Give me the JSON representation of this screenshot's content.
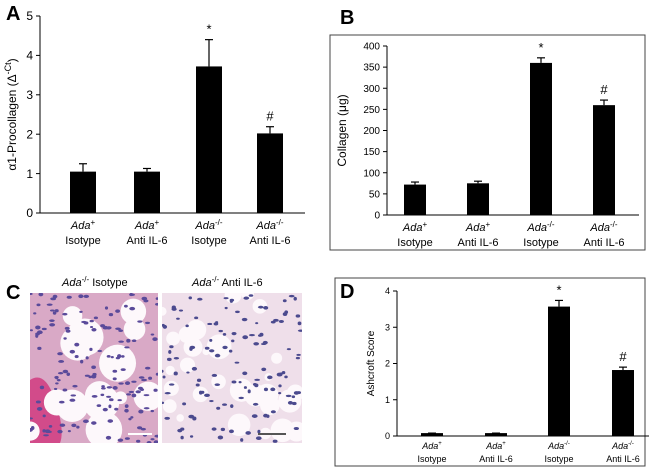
{
  "chart_data": [
    {
      "type": "bar",
      "panel": "A",
      "ylabel": "α1-Procollagen (Δ",
      "ylabel_sup": "-Ct",
      "ylabel_end": ")",
      "gene": "Ada",
      "genotypes": [
        "+",
        "+",
        "-/-",
        "-/-"
      ],
      "categories": [
        "Isotype",
        "Anti IL-6",
        "Isotype",
        "Anti IL-6"
      ],
      "values": [
        1.05,
        1.05,
        3.72,
        2.02
      ],
      "errors": [
        0.2,
        0.08,
        0.68,
        0.17
      ],
      "annotations": [
        null,
        null,
        "*",
        "#"
      ],
      "color": "#000000",
      "ylim": [
        0,
        5
      ],
      "yticks": [
        0,
        1,
        2,
        3,
        4,
        5
      ]
    },
    {
      "type": "bar",
      "panel": "B",
      "ylabel": "Collagen (μg)",
      "gene": "Ada",
      "genotypes": [
        "+",
        "+",
        "-/-",
        "-/-"
      ],
      "categories": [
        "Isotype",
        "Anti IL-6",
        "Isotype",
        "Anti IL-6"
      ],
      "values": [
        72,
        75,
        360,
        260
      ],
      "errors": [
        6,
        5,
        12,
        12
      ],
      "annotations": [
        null,
        null,
        "*",
        "#"
      ],
      "color": "#000000",
      "ylim": [
        0,
        400
      ],
      "yticks": [
        0,
        50,
        100,
        150,
        200,
        250,
        300,
        350,
        400
      ]
    },
    {
      "type": "bar",
      "panel": "D",
      "ylabel": "Ashcroft Score",
      "gene": "Ada",
      "genotypes": [
        "+",
        "+",
        "-/-",
        "-/-"
      ],
      "categories": [
        "Isotype",
        "Anti IL-6",
        "Isotype",
        "Anti IL-6"
      ],
      "values": [
        0.08,
        0.08,
        3.57,
        1.82
      ],
      "errors": [
        0,
        0,
        0.17,
        0.08
      ],
      "annotations": [
        null,
        null,
        "*",
        "#"
      ],
      "color": "#000000",
      "ylim": [
        0,
        4
      ],
      "yticks": [
        0,
        1,
        2,
        3,
        4
      ]
    }
  ],
  "images": {
    "panel": "C",
    "gene": "Ada",
    "genotype": "-/-",
    "labels": [
      "Isotype",
      "Anti IL-6"
    ]
  }
}
